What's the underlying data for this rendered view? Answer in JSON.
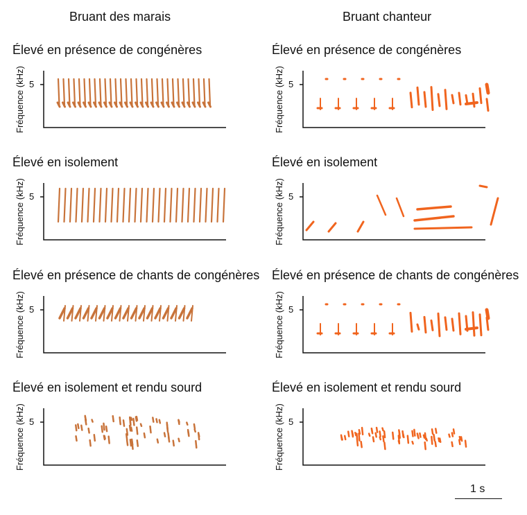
{
  "columns": {
    "left": "Bruant des marais",
    "right": "Bruant chanteur"
  },
  "axis": {
    "ylabel": "Fréquence (kHz)",
    "ytick": "5"
  },
  "panels": [
    {
      "title": "Élevé en présence de congénères",
      "species": "swamp",
      "pattern": "regular_dense"
    },
    {
      "title": "Élevé en présence de congénères",
      "species": "song",
      "pattern": "complex"
    },
    {
      "title": "Élevé en isolement",
      "species": "swamp",
      "pattern": "regular_sweeps"
    },
    {
      "title": "Élevé en isolement",
      "species": "song",
      "pattern": "isolated"
    },
    {
      "title": "Élevé en présence de chants de congénères",
      "species": "swamp",
      "pattern": "tutored"
    },
    {
      "title": "Élevé en présence de chants de congénères",
      "species": "song",
      "pattern": "complex_tutored"
    },
    {
      "title": "Élevé en isolement et rendu sourd",
      "species": "swamp",
      "pattern": "deaf"
    },
    {
      "title": "Élevé en isolement et rendu sourd",
      "species": "song",
      "pattern": "deaf"
    }
  ],
  "scale": {
    "label": "1 s"
  },
  "colors": {
    "swamp": "#c8733a",
    "song": "#f0641e",
    "axis": "#111111"
  }
}
